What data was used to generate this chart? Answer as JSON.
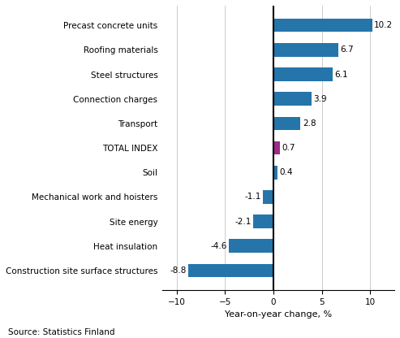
{
  "categories": [
    "Construction site surface structures",
    "Heat insulation",
    "Site energy",
    "Mechanical work and hoisters",
    "Soil",
    "TOTAL INDEX",
    "Transport",
    "Connection charges",
    "Steel structures",
    "Roofing materials",
    "Precast concrete units"
  ],
  "values": [
    -8.8,
    -4.6,
    -2.1,
    -1.1,
    0.4,
    0.7,
    2.8,
    3.9,
    6.1,
    6.7,
    10.2
  ],
  "xlabel": "Year-on-year change, %",
  "source": "Source: Statistics Finland",
  "xlim": [
    -11.5,
    12.5
  ],
  "xticks": [
    -10,
    -5,
    0,
    5,
    10
  ],
  "bar_color_main": "#2575aa",
  "bar_color_special": "#9b2c8a",
  "value_fontsize": 7.5,
  "label_fontsize": 7.5,
  "xlabel_fontsize": 8,
  "source_fontsize": 7.5,
  "bar_height": 0.55
}
